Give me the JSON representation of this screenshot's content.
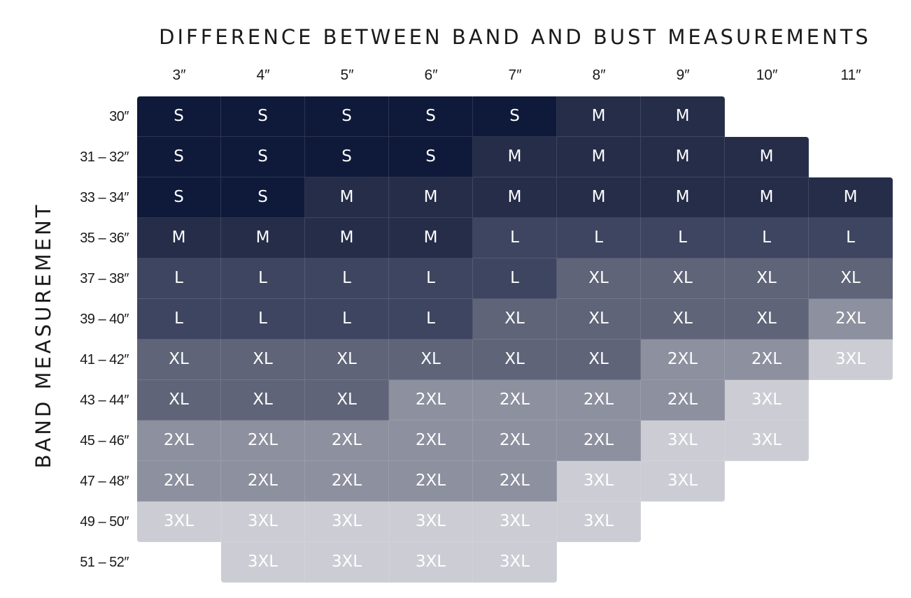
{
  "title": "DIFFERENCE BETWEEN BAND AND BUST MEASUREMENTS",
  "y_axis_label": "BAND MEASUREMENT",
  "columns": [
    "3″",
    "4″",
    "5″",
    "6″",
    "7″",
    "8″",
    "9″",
    "10″",
    "11″"
  ],
  "rows": [
    {
      "band": "30″",
      "sizes": [
        "S",
        "S",
        "S",
        "S",
        "S",
        "M",
        "M",
        "",
        ""
      ]
    },
    {
      "band": "31 – 32″",
      "sizes": [
        "S",
        "S",
        "S",
        "S",
        "M",
        "M",
        "M",
        "M",
        ""
      ]
    },
    {
      "band": "33 – 34″",
      "sizes": [
        "S",
        "S",
        "M",
        "M",
        "M",
        "M",
        "M",
        "M",
        "M"
      ]
    },
    {
      "band": "35 – 36″",
      "sizes": [
        "M",
        "M",
        "M",
        "M",
        "L",
        "L",
        "L",
        "L",
        "L"
      ]
    },
    {
      "band": "37 – 38″",
      "sizes": [
        "L",
        "L",
        "L",
        "L",
        "L",
        "XL",
        "XL",
        "XL",
        "XL"
      ]
    },
    {
      "band": "39 – 40″",
      "sizes": [
        "L",
        "L",
        "L",
        "L",
        "XL",
        "XL",
        "XL",
        "XL",
        "2XL"
      ]
    },
    {
      "band": "41 – 42″",
      "sizes": [
        "XL",
        "XL",
        "XL",
        "XL",
        "XL",
        "XL",
        "2XL",
        "2XL",
        "3XL"
      ]
    },
    {
      "band": "43 – 44″",
      "sizes": [
        "XL",
        "XL",
        "XL",
        "2XL",
        "2XL",
        "2XL",
        "2XL",
        "3XL",
        ""
      ]
    },
    {
      "band": "45 – 46″",
      "sizes": [
        "2XL",
        "2XL",
        "2XL",
        "2XL",
        "2XL",
        "2XL",
        "3XL",
        "3XL",
        ""
      ]
    },
    {
      "band": "47 – 48″",
      "sizes": [
        "2XL",
        "2XL",
        "2XL",
        "2XL",
        "2XL",
        "3XL",
        "3XL",
        "",
        ""
      ]
    },
    {
      "band": "49 – 50″",
      "sizes": [
        "3XL",
        "3XL",
        "3XL",
        "3XL",
        "3XL",
        "3XL",
        "",
        "",
        ""
      ]
    },
    {
      "band": "51 – 52″",
      "sizes": [
        "",
        "3XL",
        "3XL",
        "3XL",
        "3XL",
        "",
        "",
        "",
        ""
      ]
    }
  ],
  "size_colors": {
    "S": "#0f1a3a",
    "M": "#252d49",
    "L": "#3e4560",
    "XL": "#5f6478",
    "2XL": "#8d909e",
    "3XL": "#cccdd4"
  }
}
